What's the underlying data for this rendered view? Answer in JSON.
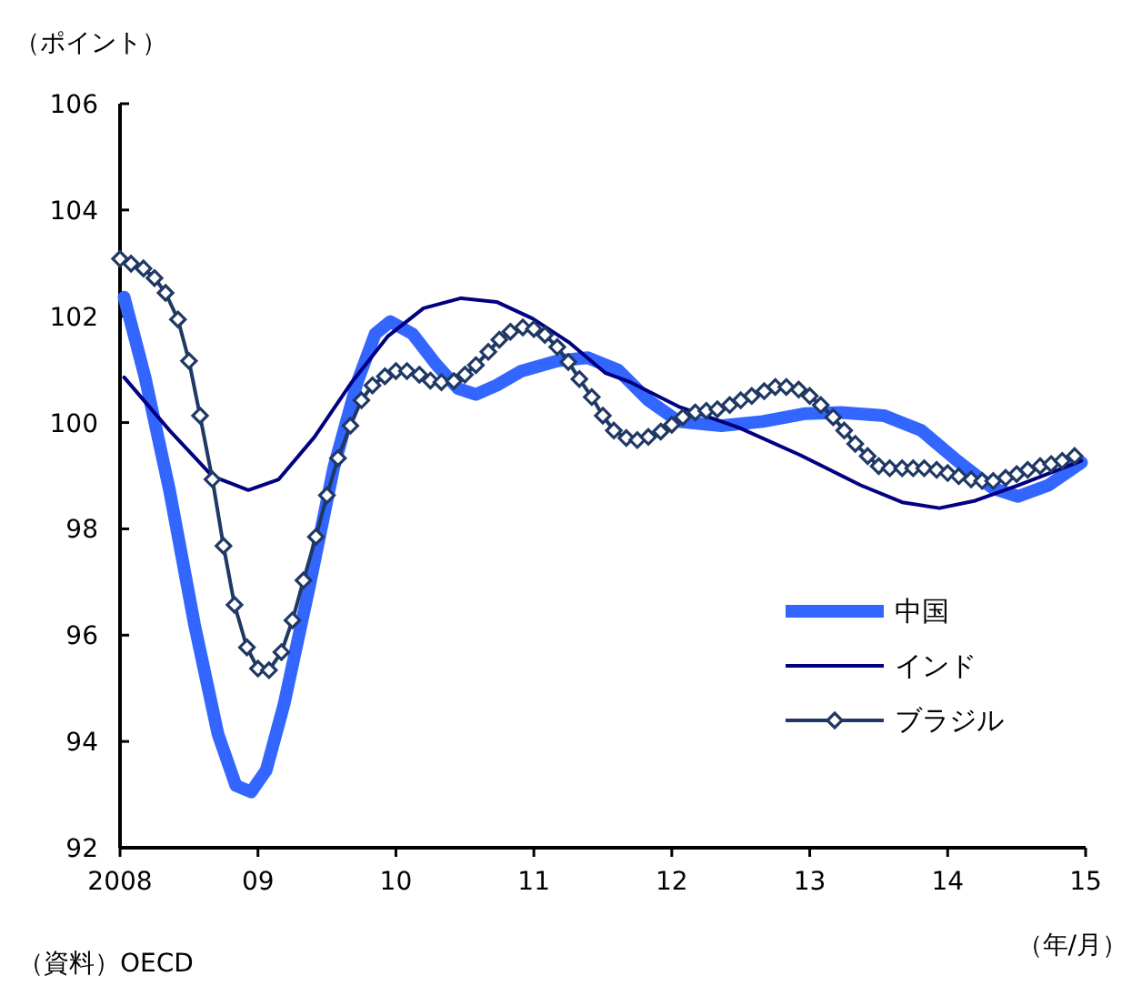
{
  "chart_data": {
    "type": "line",
    "ylabel": "（ポイント）",
    "xlabel": "（年/月）",
    "annotations": [
      "（資料）OECD"
    ],
    "xlim": [
      2008,
      2015
    ],
    "xticks": [
      {
        "value": 2008,
        "label": "2008"
      },
      {
        "value": 2009,
        "label": "09"
      },
      {
        "value": 2010,
        "label": "10"
      },
      {
        "value": 2011,
        "label": "11"
      },
      {
        "value": 2012,
        "label": "12"
      },
      {
        "value": 2013,
        "label": "13"
      },
      {
        "value": 2014,
        "label": "14"
      },
      {
        "value": 2015,
        "label": "15"
      }
    ],
    "ylim": [
      92,
      106
    ],
    "yticks": [
      92,
      94,
      96,
      98,
      100,
      102,
      104,
      106
    ],
    "grid": false,
    "legend": "bottom right",
    "series": [
      {
        "name": "中国",
        "color": "#3366ff",
        "x": [
          2008.03,
          2008.18,
          2008.36,
          2008.54,
          2008.71,
          2008.84,
          2008.95,
          2009.06,
          2009.19,
          2009.37,
          2009.55,
          2009.72,
          2009.85,
          2009.96,
          2010.12,
          2010.29,
          2010.45,
          2010.58,
          2010.73,
          2010.91,
          2011.17,
          2011.39,
          2011.61,
          2011.83,
          2012.05,
          2012.36,
          2012.66,
          2012.97,
          2013.23,
          2013.54,
          2013.81,
          2014.07,
          2014.33,
          2014.51,
          2014.73,
          2014.97
        ],
        "values": [
          102.36,
          100.87,
          98.71,
          96.2,
          94.14,
          93.17,
          93.05,
          93.46,
          94.71,
          96.88,
          99.16,
          100.76,
          101.67,
          101.9,
          101.67,
          101.1,
          100.64,
          100.53,
          100.7,
          100.97,
          101.16,
          101.22,
          100.99,
          100.42,
          100.02,
          99.94,
          100.02,
          100.17,
          100.19,
          100.13,
          99.85,
          99.28,
          98.76,
          98.61,
          98.82,
          99.25
        ]
      },
      {
        "name": "インド",
        "color": "#000080",
        "x": [
          2008.03,
          2008.36,
          2008.67,
          2008.93,
          2009.15,
          2009.41,
          2009.68,
          2009.94,
          2010.2,
          2010.47,
          2010.73,
          2010.99,
          2011.26,
          2011.52,
          2011.7,
          2012.05,
          2012.49,
          2012.93,
          2013.37,
          2013.67,
          2013.94,
          2014.2,
          2014.51,
          2014.97
        ],
        "values": [
          100.85,
          99.85,
          98.99,
          98.73,
          98.93,
          99.73,
          100.76,
          101.62,
          102.15,
          102.34,
          102.27,
          101.96,
          101.5,
          100.93,
          100.76,
          100.3,
          99.9,
          99.39,
          98.82,
          98.5,
          98.39,
          98.53,
          98.82,
          99.28
        ]
      },
      {
        "name": "ブラジル",
        "color": "#1f3864",
        "marker": "diamond",
        "x": [
          2008,
          2008.08,
          2008.17,
          2008.25,
          2008.33,
          2008.42,
          2008.5,
          2008.58,
          2008.67,
          2008.75,
          2008.83,
          2008.92,
          2009,
          2009.08,
          2009.17,
          2009.25,
          2009.33,
          2009.42,
          2009.5,
          2009.58,
          2009.67,
          2009.75,
          2009.83,
          2009.92,
          2010,
          2010.08,
          2010.17,
          2010.25,
          2010.33,
          2010.42,
          2010.5,
          2010.58,
          2010.67,
          2010.75,
          2010.83,
          2010.92,
          2011,
          2011.08,
          2011.17,
          2011.25,
          2011.33,
          2011.42,
          2011.5,
          2011.58,
          2011.67,
          2011.75,
          2011.83,
          2011.92,
          2012,
          2012.08,
          2012.17,
          2012.25,
          2012.33,
          2012.42,
          2012.5,
          2012.58,
          2012.67,
          2012.75,
          2012.83,
          2012.92,
          2013,
          2013.08,
          2013.17,
          2013.25,
          2013.33,
          2013.42,
          2013.5,
          2013.58,
          2013.67,
          2013.75,
          2013.83,
          2013.92,
          2014,
          2014.08,
          2014.17,
          2014.25,
          2014.33,
          2014.42,
          2014.5,
          2014.58,
          2014.67,
          2014.75,
          2014.83,
          2014.92
        ],
        "values": [
          103.08,
          102.99,
          102.9,
          102.72,
          102.44,
          101.94,
          101.16,
          100.13,
          98.93,
          97.68,
          96.57,
          95.77,
          95.37,
          95.34,
          95.68,
          96.28,
          97.03,
          97.85,
          98.63,
          99.33,
          99.94,
          100.42,
          100.7,
          100.87,
          100.97,
          100.97,
          100.9,
          100.79,
          100.76,
          100.78,
          100.9,
          101.08,
          101.33,
          101.56,
          101.71,
          101.79,
          101.76,
          101.65,
          101.42,
          101.14,
          100.82,
          100.48,
          100.13,
          99.85,
          99.71,
          99.67,
          99.73,
          99.83,
          99.96,
          100.1,
          100.19,
          100.22,
          100.25,
          100.33,
          100.42,
          100.5,
          100.59,
          100.67,
          100.67,
          100.62,
          100.5,
          100.33,
          100.1,
          99.85,
          99.6,
          99.37,
          99.18,
          99.14,
          99.14,
          99.14,
          99.14,
          99.11,
          99.05,
          98.99,
          98.93,
          98.9,
          98.9,
          98.96,
          99.03,
          99.11,
          99.18,
          99.22,
          99.28,
          99.37
        ]
      }
    ]
  }
}
